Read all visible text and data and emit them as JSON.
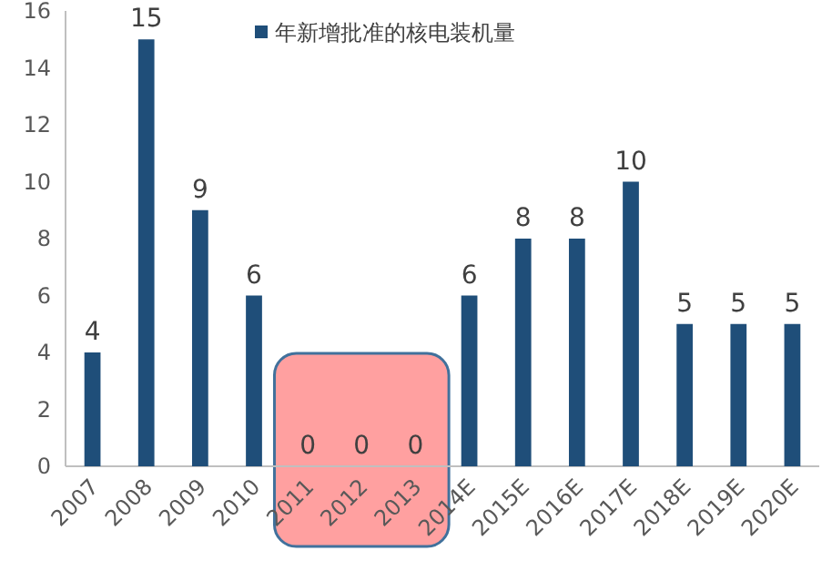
{
  "chart_data": {
    "type": "bar",
    "categories": [
      "2007",
      "2008",
      "2009",
      "2010",
      "2011",
      "2012",
      "2013",
      "2014E",
      "2015E",
      "2016E",
      "2017E",
      "2018E",
      "2019E",
      "2020E"
    ],
    "series": [
      {
        "name": "年新增批准的核电装机量",
        "color": "#1f4e79",
        "values": [
          4,
          15,
          9,
          6,
          0,
          0,
          0,
          6,
          8,
          8,
          10,
          5,
          5,
          5
        ]
      }
    ],
    "ylim": [
      0,
      16
    ],
    "yticks": [
      0,
      2,
      4,
      6,
      8,
      10,
      12,
      14,
      16
    ],
    "data_labels": true,
    "legend": "top",
    "grid": false,
    "bands": [
      {
        "axis": "x",
        "from": "2011",
        "to": "2013",
        "color": "#ffa0a0"
      }
    ]
  }
}
